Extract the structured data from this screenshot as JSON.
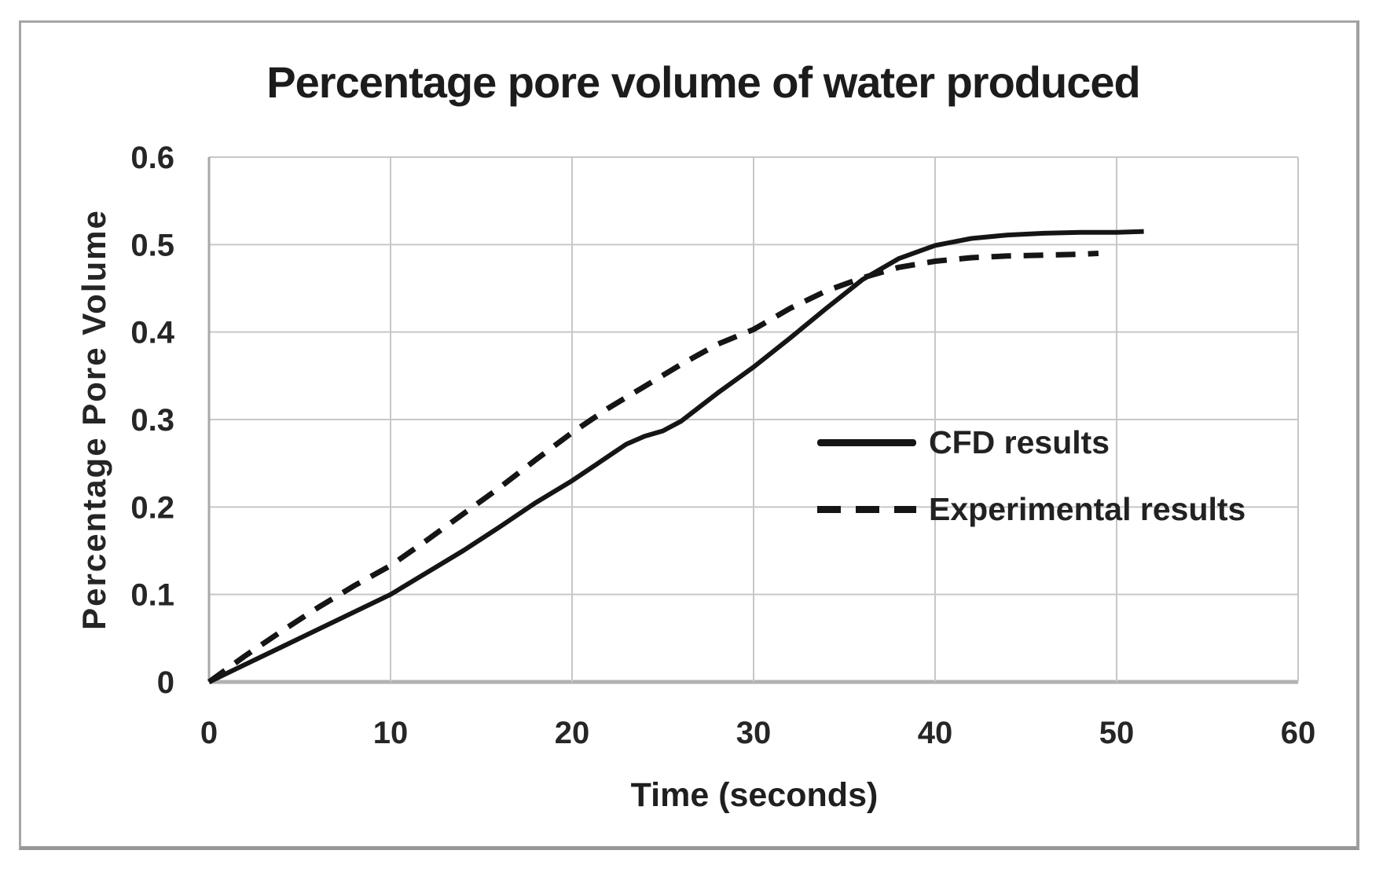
{
  "figure": {
    "background": "#ffffff",
    "frame_border_color": "#a6a6a6"
  },
  "colors": {
    "grid": "#c7c7c7",
    "axis_left": "#a8a8a8",
    "axis_bottom": "#b2b2b2",
    "curve": "#151515",
    "text": "#222222"
  },
  "chart_data": {
    "type": "line",
    "title": "Percentage pore volume of water produced",
    "xlabel": "Time (seconds)",
    "ylabel": "Percentage Pore Volume",
    "xlim": [
      0,
      60
    ],
    "ylim": [
      0,
      0.6
    ],
    "x_ticks": [
      0,
      10,
      20,
      30,
      40,
      50,
      60
    ],
    "x_tick_labels": [
      "0",
      "10",
      "20",
      "30",
      "40",
      "50",
      "60"
    ],
    "y_ticks": [
      0,
      0.1,
      0.2,
      0.3,
      0.4,
      0.5,
      0.6
    ],
    "y_tick_labels": [
      "0",
      "0.1",
      "0.2",
      "0.3",
      "0.4",
      "0.5",
      "0.6"
    ],
    "grid": true,
    "legend_position": "inside-right",
    "series": [
      {
        "name": "CFD results",
        "style": "solid",
        "color": "#151515",
        "points": [
          [
            0,
            0
          ],
          [
            2,
            0.02
          ],
          [
            4,
            0.04
          ],
          [
            6,
            0.06
          ],
          [
            8,
            0.08
          ],
          [
            10,
            0.1
          ],
          [
            12,
            0.125
          ],
          [
            14,
            0.15
          ],
          [
            16,
            0.177
          ],
          [
            18,
            0.205
          ],
          [
            20,
            0.23
          ],
          [
            22,
            0.258
          ],
          [
            23,
            0.272
          ],
          [
            24,
            0.281
          ],
          [
            25,
            0.287
          ],
          [
            26,
            0.298
          ],
          [
            28,
            0.33
          ],
          [
            30,
            0.36
          ],
          [
            32,
            0.393
          ],
          [
            34,
            0.427
          ],
          [
            36,
            0.46
          ],
          [
            38,
            0.484
          ],
          [
            40,
            0.499
          ],
          [
            42,
            0.507
          ],
          [
            44,
            0.511
          ],
          [
            46,
            0.513
          ],
          [
            48,
            0.514
          ],
          [
            50,
            0.514
          ],
          [
            51.5,
            0.515
          ]
        ]
      },
      {
        "name": "Experimental results",
        "style": "dashed",
        "color": "#151515",
        "points": [
          [
            0,
            0
          ],
          [
            2,
            0.03
          ],
          [
            4,
            0.058
          ],
          [
            6,
            0.085
          ],
          [
            8,
            0.11
          ],
          [
            10,
            0.133
          ],
          [
            12,
            0.162
          ],
          [
            14,
            0.192
          ],
          [
            16,
            0.222
          ],
          [
            18,
            0.254
          ],
          [
            20,
            0.285
          ],
          [
            22,
            0.313
          ],
          [
            24,
            0.338
          ],
          [
            26,
            0.363
          ],
          [
            28,
            0.386
          ],
          [
            30,
            0.403
          ],
          [
            32,
            0.427
          ],
          [
            34,
            0.447
          ],
          [
            36,
            0.462
          ],
          [
            38,
            0.474
          ],
          [
            40,
            0.481
          ],
          [
            42,
            0.485
          ],
          [
            44,
            0.487
          ],
          [
            46,
            0.488
          ],
          [
            48,
            0.489
          ],
          [
            49,
            0.49
          ]
        ]
      }
    ]
  }
}
